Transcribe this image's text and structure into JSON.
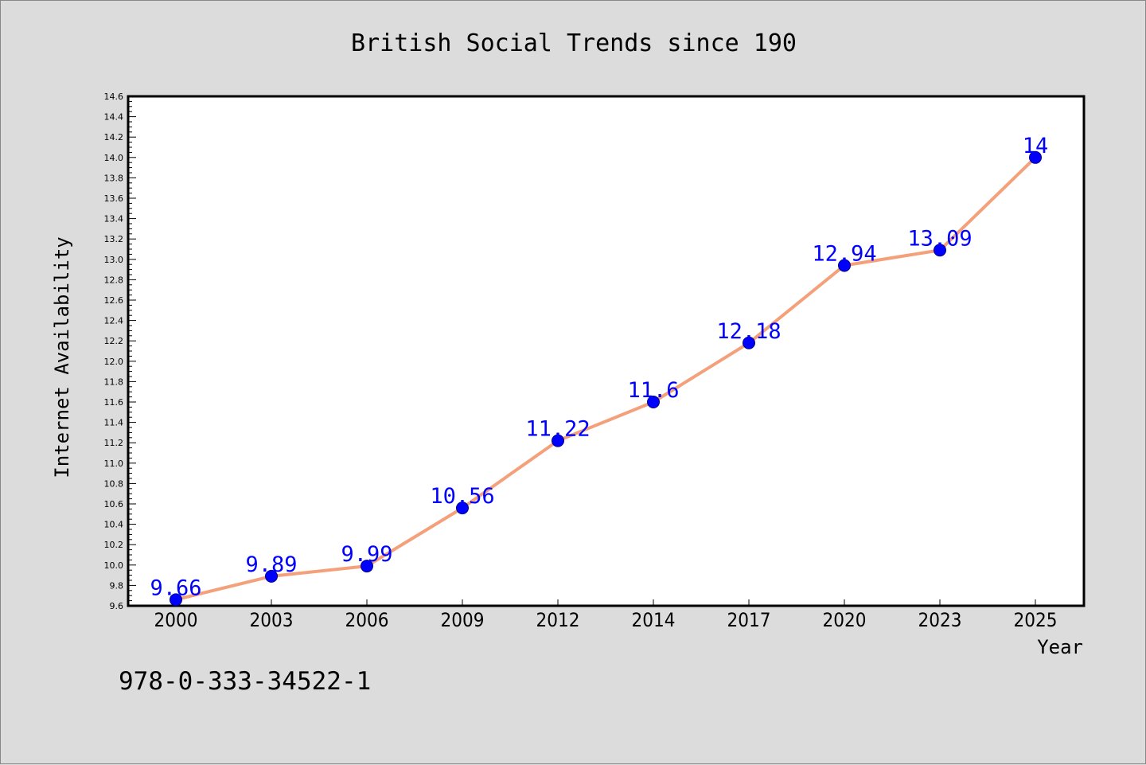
{
  "chart_data": {
    "type": "line",
    "title": "British Social Trends since 190",
    "xlabel": "Year",
    "ylabel": "Internet Availability",
    "x": [
      "2000",
      "2003",
      "2006",
      "2009",
      "2012",
      "2014",
      "2017",
      "2020",
      "2023",
      "2025"
    ],
    "series": [
      {
        "values": [
          9.66,
          9.89,
          9.99,
          10.56,
          11.22,
          11.6,
          12.18,
          12.94,
          13.09,
          14
        ],
        "labels": [
          "9.66",
          "9.89",
          "9.99",
          "10.56",
          "11.22",
          "11.6",
          "12.18",
          "12.94",
          "13.09",
          "14"
        ]
      }
    ],
    "ylim": [
      9.6,
      14.6
    ],
    "ytick_step": 0.2,
    "grid": false,
    "line_color": "#f4a07a",
    "marker_color": "#0000ff",
    "label_color": "#0000ff",
    "plot_background": "#ffffff"
  },
  "footer": {
    "isbn": "978-0-333-34522-1"
  }
}
